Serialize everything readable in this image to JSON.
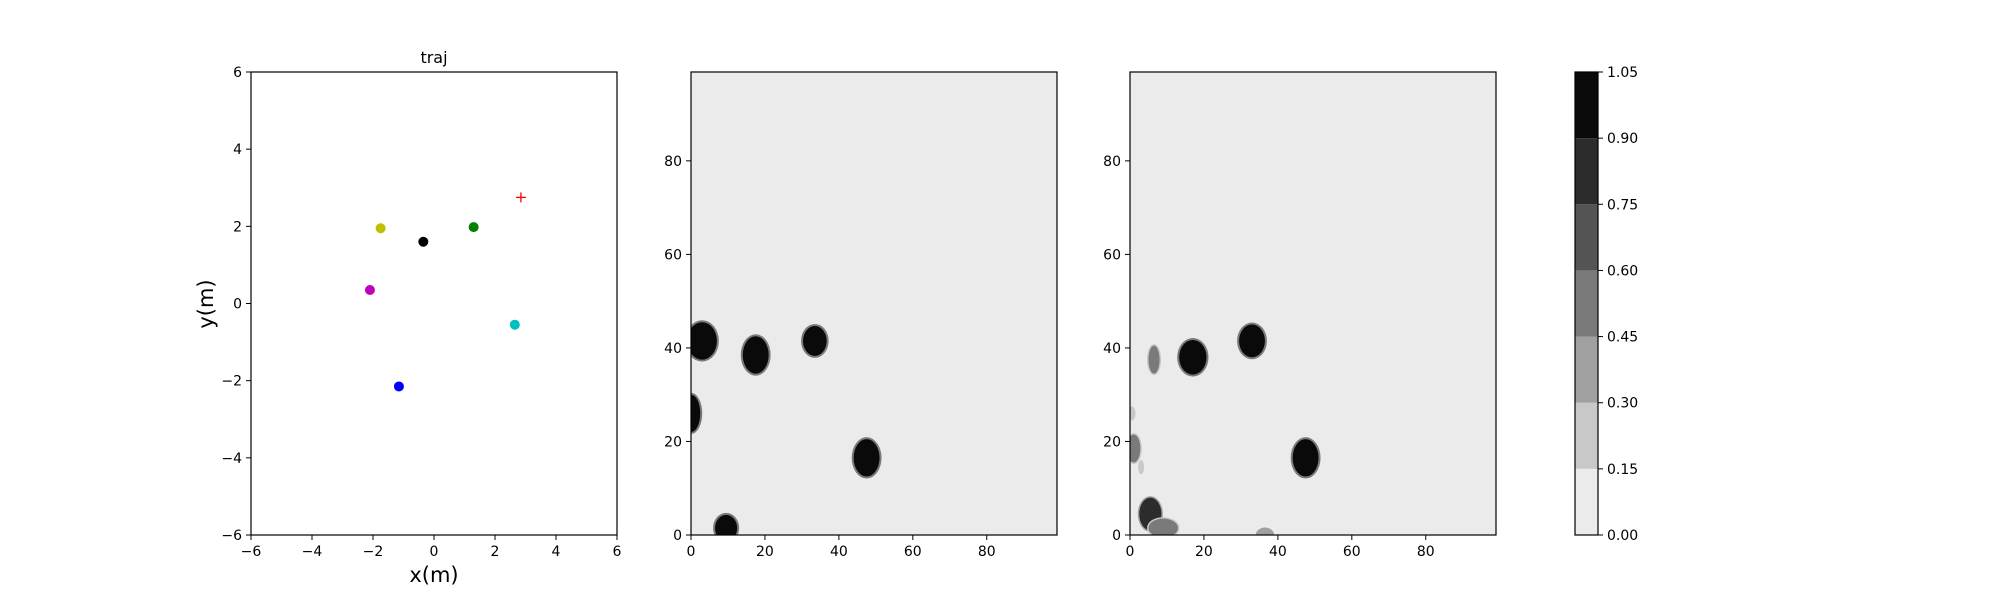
{
  "chart_data": [
    {
      "type": "scatter",
      "title": "traj",
      "xlabel": "x(m)",
      "ylabel": "y(m)",
      "xlim": [
        -6,
        6
      ],
      "ylim": [
        -6,
        6
      ],
      "xticks": [
        -6,
        -4,
        -2,
        0,
        2,
        4,
        6
      ],
      "yticks": [
        -6,
        -4,
        -2,
        0,
        2,
        4,
        6
      ],
      "grid": false,
      "points": [
        {
          "x": -1.75,
          "y": 1.95,
          "color": "#bfbf00",
          "marker": "circle"
        },
        {
          "x": -0.35,
          "y": 1.6,
          "color": "#000000",
          "marker": "circle"
        },
        {
          "x": 1.3,
          "y": 1.98,
          "color": "#008000",
          "marker": "circle"
        },
        {
          "x": -2.1,
          "y": 0.35,
          "color": "#bf00bf",
          "marker": "circle"
        },
        {
          "x": 2.65,
          "y": -0.55,
          "color": "#00bfbf",
          "marker": "circle"
        },
        {
          "x": -1.15,
          "y": -2.15,
          "color": "#0000ff",
          "marker": "circle"
        },
        {
          "x": 2.85,
          "y": 2.75,
          "color": "#ff0000",
          "marker": "plus"
        }
      ]
    },
    {
      "type": "heatmap",
      "title": "",
      "xlim": [
        0,
        99
      ],
      "ylim": [
        0,
        99
      ],
      "xticks": [
        0,
        20,
        40,
        60,
        80
      ],
      "yticks": [
        0,
        20,
        40,
        60,
        80
      ],
      "background_value": 0.05,
      "blobs": [
        {
          "x": 3,
          "y": 41.5,
          "rx": 4,
          "ry": 4,
          "value": 1.0
        },
        {
          "x": 17.5,
          "y": 38.5,
          "rx": 3.5,
          "ry": 4,
          "value": 1.0
        },
        {
          "x": 33.5,
          "y": 41.5,
          "rx": 3.2,
          "ry": 3.2,
          "value": 1.0
        },
        {
          "x": 0,
          "y": 26,
          "rx": 2.5,
          "ry": 4,
          "value": 1.0
        },
        {
          "x": 47.5,
          "y": 16.5,
          "rx": 3.5,
          "ry": 4,
          "value": 1.0
        },
        {
          "x": 9.5,
          "y": 1.5,
          "rx": 3,
          "ry": 2.8,
          "value": 1.0
        }
      ]
    },
    {
      "type": "heatmap",
      "title": "",
      "xlim": [
        0,
        99
      ],
      "ylim": [
        0,
        99
      ],
      "xticks": [
        0,
        20,
        40,
        60,
        80
      ],
      "yticks": [
        0,
        20,
        40,
        60,
        80
      ],
      "background_value": 0.05,
      "blobs": [
        {
          "x": 17,
          "y": 38,
          "rx": 3.7,
          "ry": 3.7,
          "value": 1.0
        },
        {
          "x": 33,
          "y": 41.5,
          "rx": 3.5,
          "ry": 3.5,
          "value": 1.0
        },
        {
          "x": 47.5,
          "y": 16.5,
          "rx": 3.5,
          "ry": 4,
          "value": 1.0
        },
        {
          "x": 6.5,
          "y": 37.5,
          "rx": 1.5,
          "ry": 3,
          "value": 0.5
        },
        {
          "x": 1,
          "y": 18.5,
          "rx": 1.8,
          "ry": 3,
          "value": 0.45
        },
        {
          "x": 0.5,
          "y": 26,
          "rx": 1,
          "ry": 1.5,
          "value": 0.25
        },
        {
          "x": 3,
          "y": 14.5,
          "rx": 0.8,
          "ry": 1.5,
          "value": 0.2
        },
        {
          "x": 5.5,
          "y": 4.5,
          "rx": 3,
          "ry": 3.5,
          "value": 0.75
        },
        {
          "x": 9,
          "y": 1.5,
          "rx": 4,
          "ry": 2,
          "value": 0.45
        },
        {
          "x": 36.5,
          "y": 0,
          "rx": 2.5,
          "ry": 1.6,
          "value": 0.35
        }
      ]
    },
    {
      "type": "colorbar",
      "levels": [
        0.0,
        0.15,
        0.3,
        0.45,
        0.6,
        0.75,
        0.9,
        1.05
      ],
      "tick_labels": [
        "0.00",
        "0.15",
        "0.30",
        "0.45",
        "0.60",
        "0.75",
        "0.90",
        "1.05"
      ],
      "colors": [
        "#ebebeb",
        "#c8c8c8",
        "#a0a0a0",
        "#7a7a7a",
        "#545454",
        "#2c2c2c",
        "#0a0a0a"
      ]
    }
  ]
}
